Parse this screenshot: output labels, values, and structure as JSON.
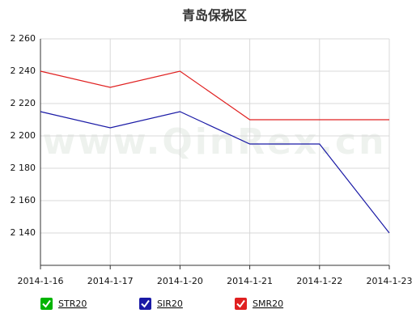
{
  "chart_data": {
    "type": "line",
    "title": "青岛保税区",
    "watermark": "www.QinRex.cn",
    "categories": [
      "2014-1-16",
      "2014-1-17",
      "2014-1-20",
      "2014-1-21",
      "2014-1-22",
      "2014-1-23"
    ],
    "series": [
      {
        "name": "STR20",
        "color": "#00b400",
        "values": [
          null,
          null,
          null,
          null,
          null,
          null
        ]
      },
      {
        "name": "SIR20",
        "color": "#1a1aa6",
        "values": [
          2215,
          2205,
          2215,
          2195,
          2195,
          2140
        ]
      },
      {
        "name": "SMR20",
        "color": "#e02020",
        "values": [
          2240,
          2230,
          2240,
          2210,
          2210,
          2210
        ]
      }
    ],
    "ylim": [
      2120,
      2260
    ],
    "yticks": [
      {
        "value": 2140,
        "label": "2 140"
      },
      {
        "value": 2160,
        "label": "2 160"
      },
      {
        "value": 2180,
        "label": "2 180"
      },
      {
        "value": 2200,
        "label": "2 200"
      },
      {
        "value": 2220,
        "label": "2 220"
      },
      {
        "value": 2240,
        "label": "2 240"
      },
      {
        "value": 2260,
        "label": "2 260"
      }
    ],
    "grid": true
  }
}
